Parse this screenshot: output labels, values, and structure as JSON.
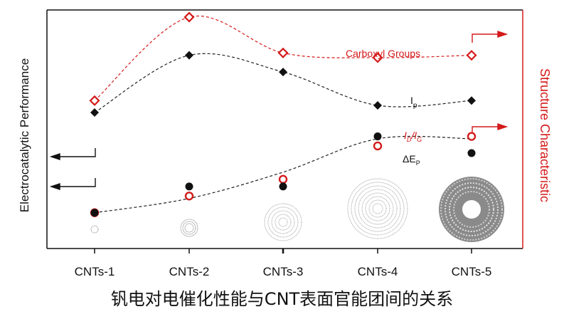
{
  "chart_data": {
    "type": "line",
    "title": "钒电对电催化性能与CNT表面官能团间的关系",
    "categories": [
      "CNTs-1",
      "CNTs-2",
      "CNTs-3",
      "CNTs-4",
      "CNTs-5"
    ],
    "ylabel_left": "Electrocatalytic Performance",
    "ylabel_right": "Structure Characteristic",
    "ylim": [
      0,
      100
    ],
    "grid": false,
    "series": [
      {
        "name": "Carboxyl Groups",
        "axis": "right",
        "marker": "open-diamond",
        "color": "#d41a1a",
        "line": "dashed",
        "values": [
          62,
          97,
          82,
          80,
          81
        ]
      },
      {
        "name": "Ip",
        "axis": "left",
        "marker": "filled-diamond",
        "color": "#111111",
        "line": "dashed",
        "values": [
          57,
          81,
          74,
          60,
          62
        ]
      },
      {
        "name": "ID/IG",
        "axis": "right",
        "marker": "open-circle",
        "color": "#d41a1a",
        "line": "none",
        "values": [
          15,
          22,
          29,
          43,
          47
        ]
      },
      {
        "name": "ΔEp",
        "axis": "left",
        "marker": "filled-circle",
        "color": "#111111",
        "line": "none",
        "values": [
          15,
          26,
          26,
          47,
          40
        ]
      }
    ],
    "trend_line": {
      "series": "ID/IG and ΔEp",
      "values": [
        15,
        21,
        32,
        46,
        46
      ]
    },
    "labels": {
      "carboxyl": "Carboxyl Groups",
      "ip_main": "I",
      "ip_sub": "p",
      "idig_d_main": "I",
      "idig_d_sub": "D",
      "idig_sep": "/",
      "idig_g_main": "I",
      "idig_g_sub": "G",
      "dep_main": "ΔE",
      "dep_sub": "P"
    }
  }
}
